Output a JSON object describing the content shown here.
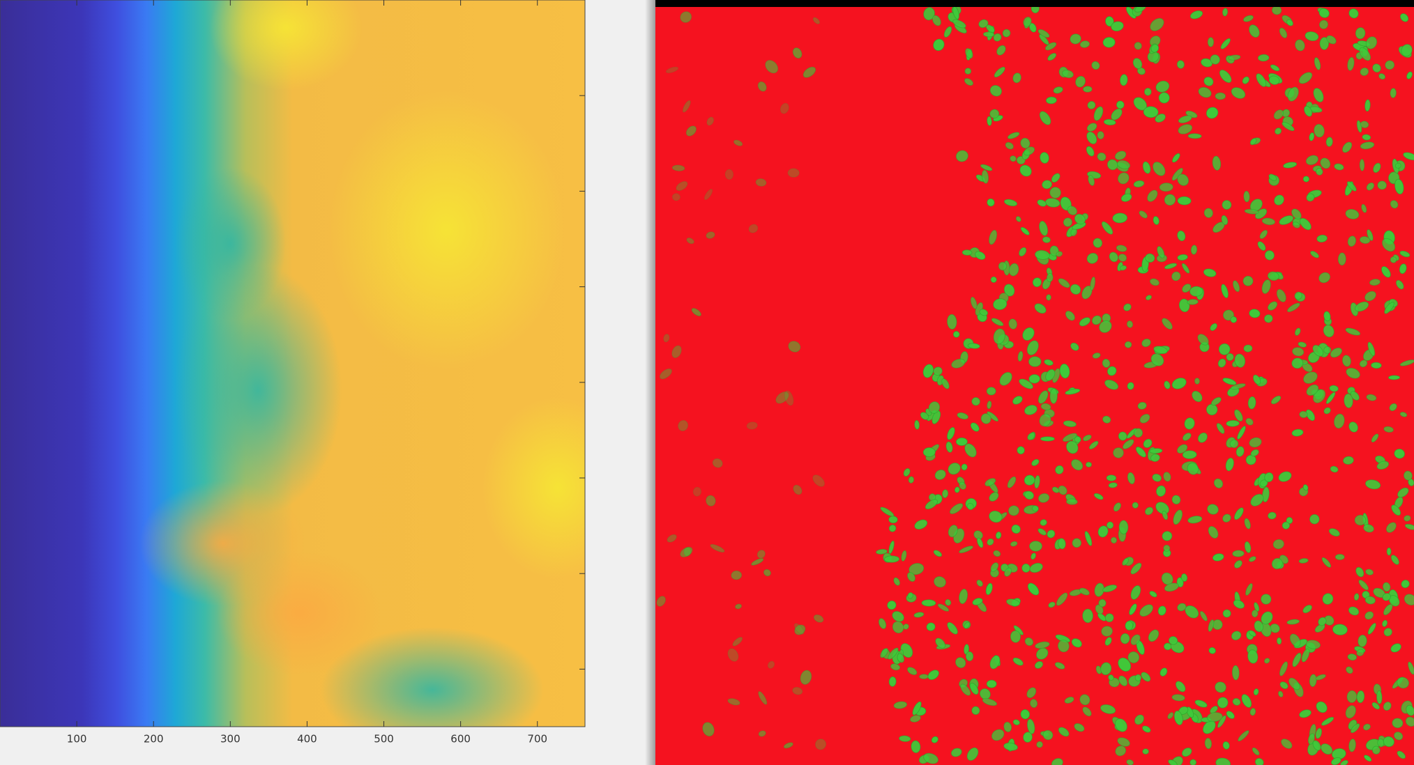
{
  "chart_data": {
    "type": "heatmap",
    "xlim": [
      0,
      762
    ],
    "xticks": [
      100,
      200,
      300,
      400,
      500,
      600,
      700
    ]
  }
}
